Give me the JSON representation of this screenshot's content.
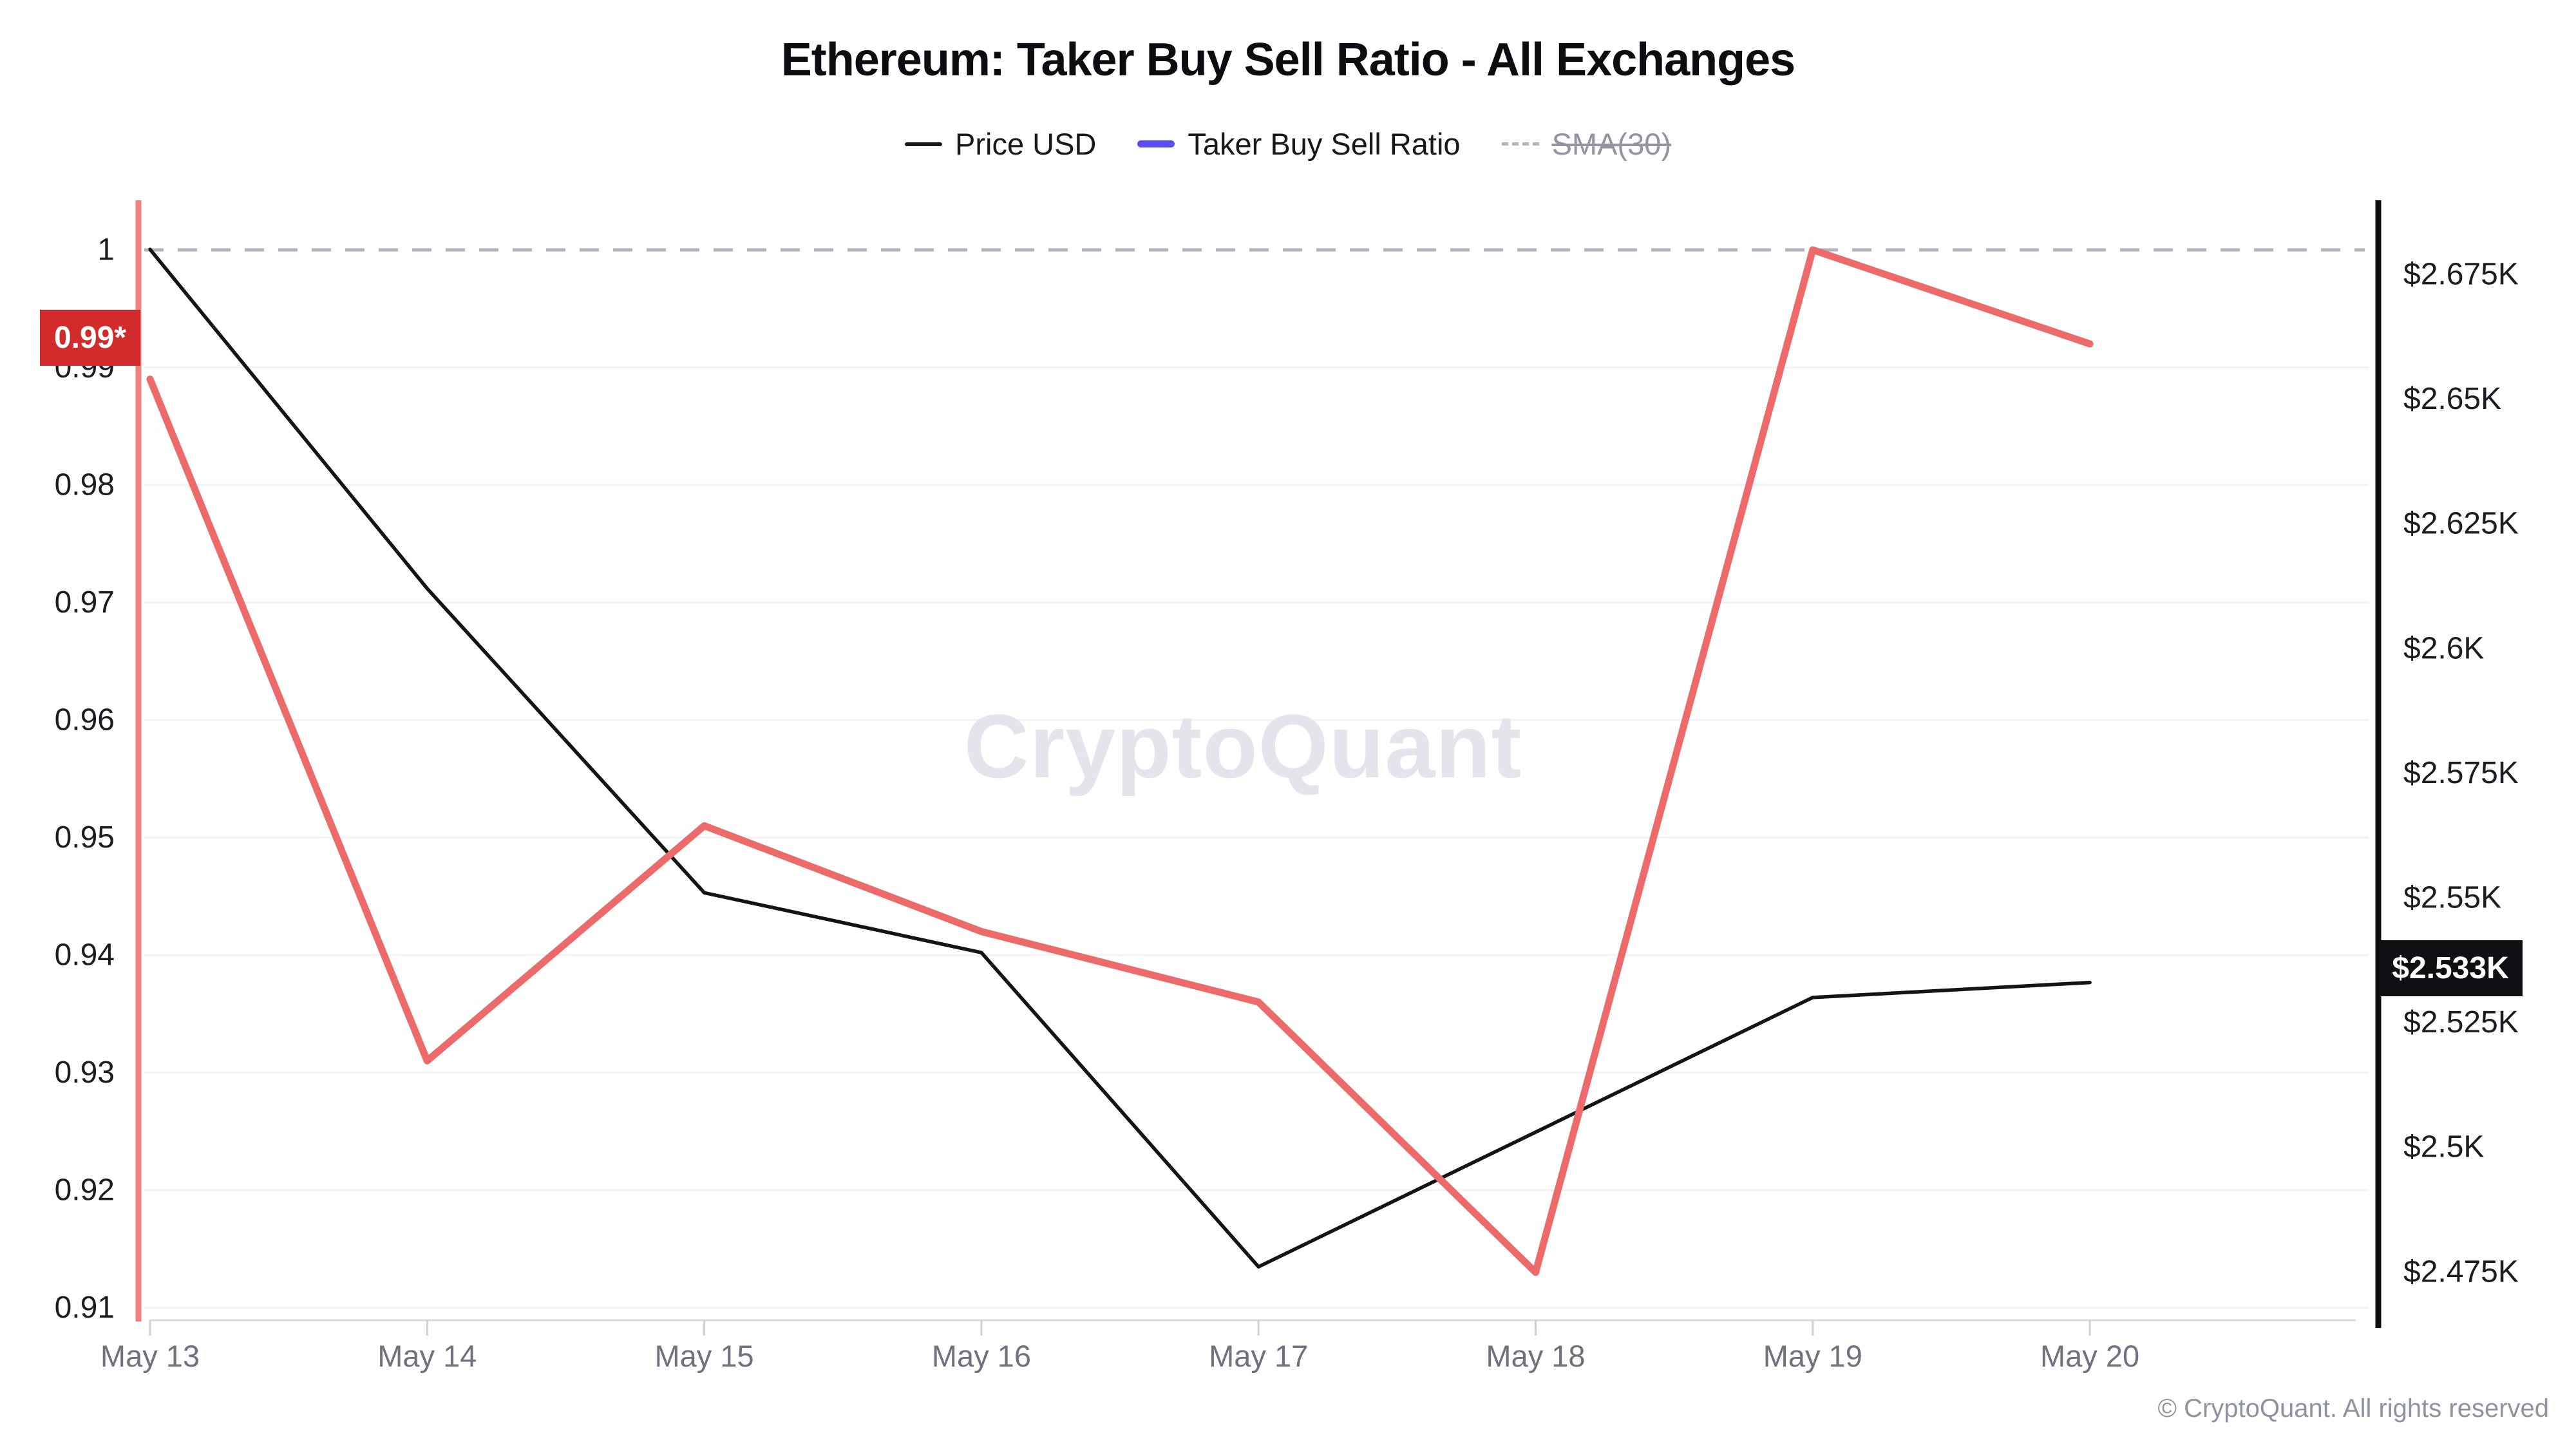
{
  "header": {
    "title": "Ethereum: Taker Buy Sell Ratio - All Exchanges"
  },
  "legend": {
    "items": [
      {
        "label": "Price USD",
        "color": "#17171c",
        "style": "solid",
        "disabled": false
      },
      {
        "label": "Taker Buy Sell Ratio",
        "color": "#5b4dee",
        "style": "solid",
        "disabled": false
      },
      {
        "label": "SMA(30)",
        "color": "#b4b4c0",
        "style": "dashed",
        "disabled": true
      }
    ]
  },
  "chart_data": {
    "type": "line",
    "categories": [
      "May 13",
      "May 14",
      "May 15",
      "May 16",
      "May 17",
      "May 18",
      "May 19",
      "May 20"
    ],
    "series": [
      {
        "name": "Price USD",
        "axis": "right",
        "color": "#141414",
        "unit": "USD (K)",
        "values": [
          2.68,
          2.612,
          2.551,
          2.539,
          2.476,
          2.503,
          2.53,
          2.533
        ]
      },
      {
        "name": "Taker Buy Sell Ratio",
        "axis": "left",
        "color": "#ec6a6a",
        "values": [
          0.989,
          0.931,
          0.951,
          0.942,
          0.936,
          0.913,
          1.0,
          0.992
        ]
      }
    ],
    "reference_line": {
      "name": "SMA(30)",
      "axis": "left",
      "value": 1.0,
      "style": "dashed",
      "color": "#b4b4c0"
    },
    "left_axis": {
      "range": [
        0.91,
        1.0
      ],
      "ticks": [
        1,
        0.99,
        0.98,
        0.97,
        0.96,
        0.95,
        0.94,
        0.93,
        0.92,
        0.91
      ],
      "tick_labels": [
        "1",
        "0.99",
        "0.98",
        "0.97",
        "0.96",
        "0.95",
        "0.94",
        "0.93",
        "0.92",
        "0.91"
      ],
      "axis_color": "#ef8080"
    },
    "right_axis": {
      "range_k": [
        2.475,
        2.675
      ],
      "ticks": [
        2.675,
        2.65,
        2.625,
        2.6,
        2.575,
        2.55,
        2.525,
        2.5,
        2.475
      ],
      "tick_labels": [
        "$2.675K",
        "$2.65K",
        "$2.625K",
        "$2.6K",
        "$2.575K",
        "$2.55K",
        "$2.525K",
        "$2.5K",
        "$2.475K"
      ],
      "axis_color": "#0f0f13"
    },
    "grid": true,
    "legend_position": "top"
  },
  "badges": {
    "left": "0.99*",
    "right": "$2.533K"
  },
  "watermark": "CryptoQuant",
  "footer": {
    "copyright": "© CryptoQuant. All rights reserved"
  },
  "colors": {
    "ratio_line": "#ec6a6a",
    "price_line": "#141414",
    "left_axis": "#ef8080",
    "right_axis": "#0f0f13",
    "gridline": "#f3f3f7",
    "bottom_border": "#dadae2",
    "x_tick": "#cfcfd8",
    "x_label": "#70707e",
    "y_label": "#1c1c22",
    "dashed_reference": "#b4b4c0",
    "left_badge_bg": "#d32b2b",
    "right_badge_bg": "#0f0f13"
  }
}
